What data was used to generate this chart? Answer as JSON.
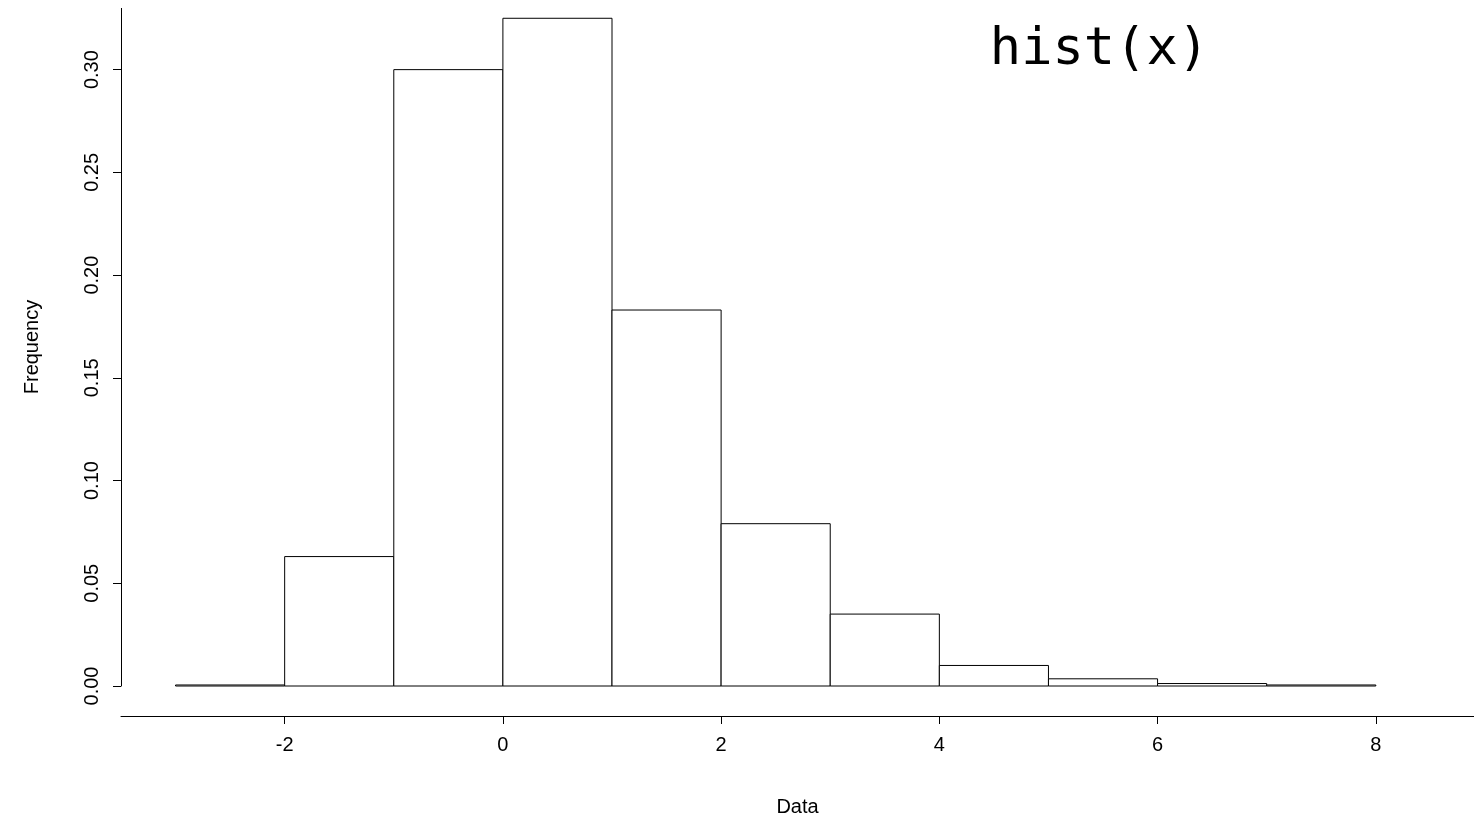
{
  "chart_data": {
    "type": "histogram",
    "xlabel": "Data",
    "ylabel": "Frequency",
    "annotations": [
      "hist(x)"
    ],
    "bins": [
      -3,
      -2,
      -1,
      0,
      1,
      2,
      3,
      4,
      5,
      6,
      7,
      8
    ],
    "values": [
      0.0005,
      0.063,
      0.3,
      0.325,
      0.183,
      0.079,
      0.035,
      0.01,
      0.0035,
      0.0012,
      0.0005
    ],
    "color": "#ffffff",
    "xlim": [
      -3.5,
      8.9
    ],
    "xticks": [
      -2,
      0,
      2,
      4,
      6,
      8
    ],
    "ylim": [
      0,
      0.33
    ],
    "yticks": [
      {
        "value": 0,
        "label": "0.00"
      },
      {
        "value": 0.05,
        "label": "0.05"
      },
      {
        "value": 0.1,
        "label": "0.10"
      },
      {
        "value": 0.15,
        "label": "0.15"
      },
      {
        "value": 0.2,
        "label": "0.20"
      },
      {
        "value": 0.25,
        "label": "0.25"
      },
      {
        "value": 0.3,
        "label": "0.30"
      }
    ],
    "grid": false
  }
}
